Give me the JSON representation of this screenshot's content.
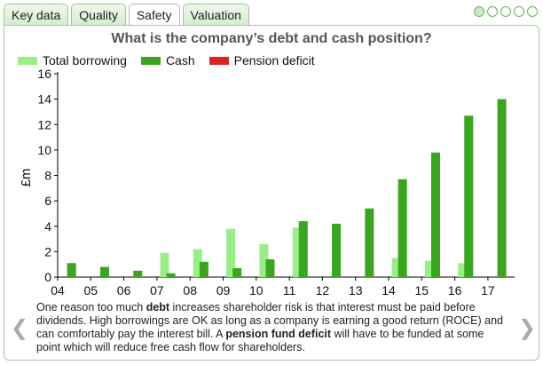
{
  "tabs": [
    {
      "label": "Key data",
      "active": false
    },
    {
      "label": "Quality",
      "active": false
    },
    {
      "label": "Safety",
      "active": true
    },
    {
      "label": "Valuation",
      "active": false
    }
  ],
  "page_dots": {
    "total": 5,
    "active_index": 0
  },
  "chart_data": {
    "type": "bar",
    "title": "What is the company’s debt and cash position?",
    "ylabel": "£m",
    "xlabel": "",
    "ylim": [
      0,
      16
    ],
    "yticks": [
      0,
      2,
      4,
      6,
      8,
      10,
      12,
      14,
      16
    ],
    "categories": [
      "04",
      "05",
      "06",
      "07",
      "08",
      "09",
      "10",
      "11",
      "12",
      "13",
      "14",
      "15",
      "16",
      "17"
    ],
    "legend_position": "top-left",
    "series": [
      {
        "name": "Total borrowing",
        "color": "#99ee88",
        "values": [
          0,
          0,
          0,
          1.9,
          2.2,
          3.8,
          2.6,
          3.9,
          0,
          0,
          1.5,
          1.3,
          1.1,
          0
        ]
      },
      {
        "name": "Cash",
        "color": "#3aa51f",
        "values": [
          1.1,
          0.8,
          0.5,
          0.3,
          1.2,
          0.7,
          1.4,
          4.4,
          4.2,
          5.4,
          7.7,
          9.8,
          12.7,
          14.0
        ]
      },
      {
        "name": "Pension deficit",
        "color": "#dd2222",
        "values": [
          0,
          0,
          0,
          0,
          0,
          0,
          0,
          0,
          0,
          0,
          0,
          0,
          0,
          0
        ]
      }
    ]
  },
  "description": {
    "part1": "One reason too much ",
    "bold1": "debt",
    "part2": " increases shareholder risk is that interest must be paid before dividends. High borrowings are OK as long as a company is earning a good return (ROCE) and can comfortably pay the interest bill. A ",
    "bold2": "pension fund deficit",
    "part3": " will have to be funded at some point which will reduce free cash flow for shareholders."
  },
  "nav": {
    "prev_icon": "chevron-left-icon",
    "next_icon": "chevron-right-icon",
    "prev_glyph": "❮",
    "next_glyph": "❯"
  }
}
